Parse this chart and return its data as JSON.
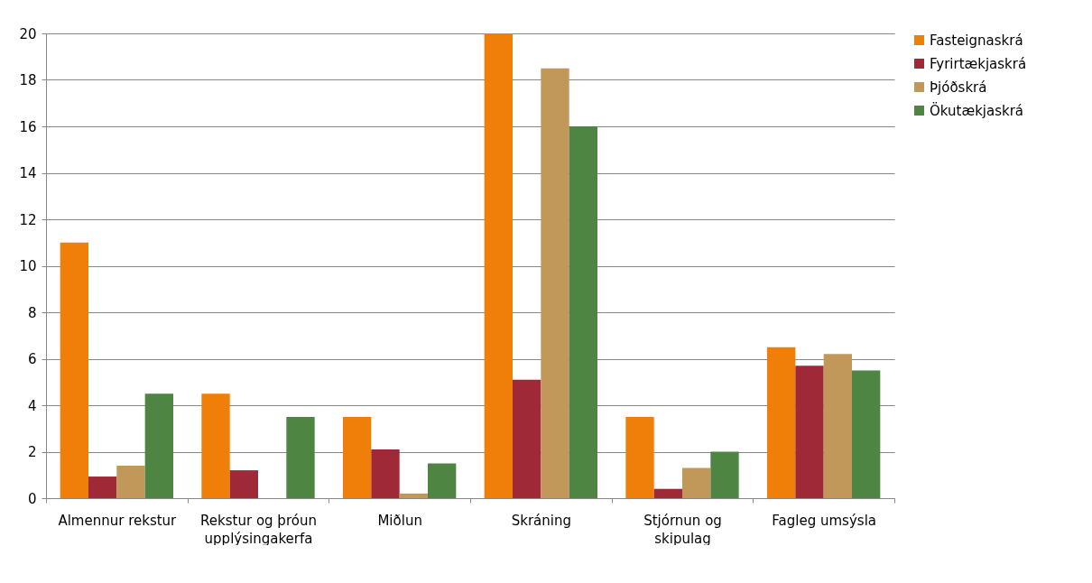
{
  "chart_data": {
    "type": "bar",
    "categories": [
      "Almennur rekstur",
      "Rekstur og þróun upplýsingakerfa",
      "Miðlun",
      "Skráning",
      "Stjórnun og skipulag",
      "Fagleg umsýsla"
    ],
    "series": [
      {
        "name": "Fasteignaskrá",
        "color": "#f07f09",
        "values": [
          11,
          4.5,
          3.5,
          20,
          3.5,
          6.5
        ]
      },
      {
        "name": "Fyrirtækjaskrá",
        "color": "#9f2936",
        "values": [
          0.93,
          1.2,
          2.1,
          5.1,
          0.4,
          5.7
        ]
      },
      {
        "name": "Þjóðskrá",
        "color": "#c19859",
        "values": [
          1.4,
          0,
          0.2,
          18.5,
          1.3,
          6.2
        ]
      },
      {
        "name": "Ökutækjaskrá",
        "color": "#4e8542",
        "values": [
          4.5,
          3.5,
          1.5,
          16,
          2,
          5.5
        ]
      }
    ],
    "ylim": [
      0,
      20
    ],
    "yticks": [
      0,
      2,
      4,
      6,
      8,
      10,
      12,
      14,
      16,
      18,
      20
    ],
    "grid": "y",
    "legend": "right"
  }
}
